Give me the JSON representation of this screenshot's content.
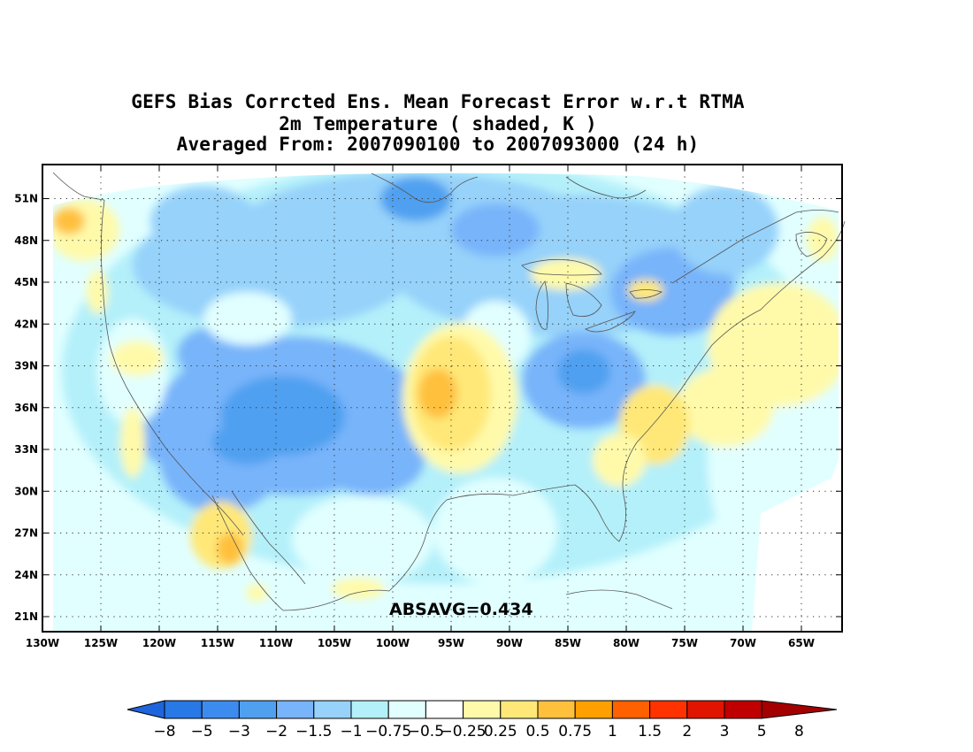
{
  "map": {
    "title_lines": [
      "GEFS Bias Corrcted Ens. Mean Forecast Error w.r.t RTMA",
      "2m Temperature ( shaded, K )",
      "Averaged From: 2007090100 to 2007093000 (24 h)"
    ],
    "annotation": "ABSAVG=0.434",
    "lon_labels": [
      "130W",
      "125W",
      "120W",
      "115W",
      "110W",
      "105W",
      "100W",
      "95W",
      "90W",
      "85W",
      "80W",
      "75W",
      "70W",
      "65W"
    ],
    "lat_labels": [
      "51N",
      "48N",
      "45N",
      "42N",
      "39N",
      "36N",
      "33N",
      "30N",
      "27N",
      "24N",
      "21N"
    ],
    "lon_range": [
      -130,
      -62
    ],
    "lat_range": [
      20,
      52
    ],
    "grid": "dotted"
  },
  "colorbar": {
    "labels": [
      "-8",
      "-5",
      "-3",
      "-2",
      "-1.5",
      "-1",
      "-0.75",
      "-0.5",
      "-0.25",
      "0.25",
      "0.5",
      "0.75",
      "1",
      "1.5",
      "2",
      "3",
      "5",
      "8"
    ],
    "colors": [
      "#1e64dc",
      "#2878e6",
      "#3c8cf0",
      "#50a0f0",
      "#78b4fa",
      "#96d2fa",
      "#b4f0fa",
      "#e1ffff",
      "#ffffff",
      "#fffaaa",
      "#ffe878",
      "#ffc03c",
      "#ffa000",
      "#ff6000",
      "#ff3200",
      "#e11400",
      "#c00000",
      "#a50000"
    ]
  },
  "field": {
    "blue_scale": [
      "#e1ffff",
      "#b4f0fa",
      "#96d2fa",
      "#78b4fa",
      "#50a0f0",
      "#3c8cf0"
    ],
    "warm_scale": [
      "#fffaaa",
      "#ffe878",
      "#ffc03c",
      "#ffa000"
    ]
  }
}
